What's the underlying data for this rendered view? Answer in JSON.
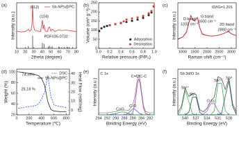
{
  "chart_data": [
    {
      "type": "line",
      "panel_label": "(a)",
      "x_label": "2theta (degree)",
      "y_label": "Intensity (a.u.)",
      "xlim": [
        10,
        80
      ],
      "xticks": [
        10,
        20,
        30,
        40,
        50,
        60,
        70,
        80
      ],
      "ylim": [
        0,
        100
      ],
      "legend": "upper right",
      "annotations": [
        "(012)",
        "(104)",
        "PDF#35-0732"
      ],
      "x": [
        10,
        15,
        20,
        23.7,
        25,
        27,
        28,
        28.7,
        29.5,
        31,
        35,
        38,
        40.1,
        41,
        42,
        43.5,
        46,
        47.1,
        48.4,
        50,
        51.6,
        55,
        59.4,
        62.9,
        65.9,
        68.6,
        71.5,
        75.4,
        80
      ],
      "series": [
        {
          "name": "Sb-NPs@PC",
          "color": "#e53935",
          "values": [
            38,
            36,
            37,
            42,
            38,
            40,
            55,
            95,
            50,
            40,
            38,
            37,
            62,
            42,
            52,
            38,
            37,
            44,
            47,
            38,
            42,
            37,
            41,
            39,
            40,
            40,
            39,
            38,
            37
          ]
        },
        {
          "type": "stick",
          "color": "#222222",
          "x": [
            23.7,
            28.7,
            40.1,
            42,
            47.1,
            48.4,
            51.6,
            59.4,
            62.9,
            65.9,
            68.6,
            71.5,
            75.4
          ],
          "values": [
            5,
            28,
            12,
            10,
            4,
            6,
            5,
            4,
            3,
            3,
            4,
            3,
            3
          ]
        }
      ]
    },
    {
      "type": "scatter",
      "panel_label": "(b)",
      "x_label": "Relative pressure (P/P₀)",
      "y_label": "Volume (cm³ g⁻¹)",
      "xlim": [
        0,
        1
      ],
      "xticks": [
        {
          "value": 0,
          "label": "0.0"
        },
        0.2,
        0.4,
        0.6,
        0.8,
        {
          "value": 1,
          "label": "1.0"
        }
      ],
      "ylim": [
        0,
        250
      ],
      "yticks": [
        0,
        50,
        100,
        150,
        200,
        250
      ],
      "legend": "lower right",
      "series": [
        {
          "name": "Adsorption",
          "color": "#222222",
          "marker": "square",
          "x": [
            0.01,
            0.05,
            0.1,
            0.15,
            0.2,
            0.3,
            0.4,
            0.5,
            0.6,
            0.7,
            0.8,
            0.9,
            0.95,
            0.99
          ],
          "values": [
            95,
            110,
            118,
            123,
            127,
            133,
            139,
            145,
            151,
            158,
            167,
            182,
            197,
            230
          ]
        },
        {
          "name": "Desorption",
          "color": "#e53935",
          "marker": "circle",
          "x": [
            0.99,
            0.95,
            0.9,
            0.8,
            0.7,
            0.6,
            0.5,
            0.45,
            0.4,
            0.3,
            0.2
          ],
          "values": [
            230,
            205,
            192,
            178,
            170,
            164,
            158,
            148,
            140,
            133,
            127
          ]
        }
      ]
    },
    {
      "type": "line",
      "panel_label": "(c)",
      "x_label": "Raman shift (cm⁻¹)",
      "y_label": "Intensity (a.u.)",
      "xlim": [
        800,
        3200
      ],
      "xticks": [
        1000,
        1500,
        2000,
        2500,
        3000
      ],
      "ylim": [
        0,
        100
      ],
      "annotations": [
        "ID/IG=1.201",
        "D band",
        "1332 cm⁻¹",
        "G band",
        "1600 cm⁻¹",
        "2D band",
        "2880 cm⁻¹"
      ],
      "x": [
        800,
        1000,
        1150,
        1250,
        1332,
        1420,
        1500,
        1600,
        1700,
        1800,
        2000,
        2200,
        2400,
        2600,
        2750,
        2880,
        3000,
        3200
      ],
      "series": [
        {
          "color": "#222222",
          "values": [
            20,
            25,
            35,
            55,
            72,
            62,
            60,
            68,
            45,
            32,
            28,
            27,
            28,
            31,
            34,
            38,
            32,
            28
          ]
        },
        {
          "color": "#e53935",
          "values": [
            21,
            25,
            36,
            56,
            71,
            63,
            61,
            67,
            46,
            31,
            28,
            27,
            28,
            31,
            34,
            37,
            32,
            28
          ]
        }
      ]
    },
    {
      "type": "line",
      "panel_label": "(d)",
      "x_label": "Temperature (℃)",
      "y_label": "Weight (%)",
      "y2_label": "Heat Flow (mW/mg)",
      "xlim": [
        0,
        850
      ],
      "xticks": [
        0,
        200,
        400,
        600,
        800
      ],
      "ylim": [
        20,
        105
      ],
      "yticks": [
        20,
        40,
        60,
        80,
        100
      ],
      "y2lim": [
        -5,
        45
      ],
      "y2ticks": [
        0,
        10,
        20,
        30,
        40
      ],
      "legend": "upper right",
      "annotations": [
        "74.39%",
        "25.18 %"
      ],
      "annotation_color": "#e53935",
      "x": [
        25,
        100,
        200,
        300,
        350,
        400,
        450,
        500,
        550,
        600,
        700,
        800
      ],
      "series": [
        {
          "name": "DSC",
          "color": "#1e4fd8",
          "axis": "y2",
          "dash": true,
          "values": [
            2,
            3,
            4,
            5,
            7,
            12,
            20,
            38,
            15,
            6,
            4,
            3
          ]
        },
        {
          "name": "Sb-NPs@PC",
          "color": "#222222",
          "values": [
            100,
            99,
            97,
            95,
            93,
            88,
            75,
            45,
            30,
            27,
            26,
            26
          ]
        }
      ]
    },
    {
      "type": "line",
      "panel_label": "(e)",
      "x_label": "Binding Energy (eV)",
      "y_label": "Intensity (a.u.)",
      "xlim": [
        294,
        281
      ],
      "xticks": [
        294,
        292,
        290,
        288,
        286,
        284,
        282
      ],
      "ylim": [
        0,
        115
      ],
      "peak_labels": true,
      "annotations": [
        "C 1s"
      ],
      "x": [
        294,
        292,
        290,
        289,
        288,
        287.5,
        287,
        286.5,
        286,
        285.5,
        285,
        284.8,
        284.6,
        284.3,
        284,
        283.5,
        283,
        282,
        281
      ],
      "series": [
        {
          "color": "#8c8c8c",
          "values": [
            5,
            5,
            8,
            12,
            12,
            12,
            11,
            17,
            26,
            48,
            86,
            97,
            100,
            87,
            61,
            22,
            8,
            5,
            5
          ]
        },
        {
          "name": "C=C/C-C",
          "color": "#b03aa8",
          "values": [
            0,
            0,
            0,
            0,
            0,
            0,
            0.3,
            0.6,
            6,
            29,
            72,
            85,
            90,
            79,
            55,
            17,
            3,
            0,
            0
          ]
        },
        {
          "name": "C-O",
          "color": "#3a6ee8",
          "values": [
            0,
            0,
            0,
            0,
            0,
            1.6,
            5,
            10,
            15,
            14,
            9,
            7,
            5,
            3,
            1,
            0,
            0,
            0,
            0
          ]
        },
        {
          "name": "C=O",
          "color": "#2ca02c",
          "values": [
            0,
            0,
            3,
            7,
            7,
            5,
            3,
            1,
            0,
            0,
            0,
            0,
            0,
            0,
            0,
            0,
            0,
            0,
            0
          ]
        }
      ]
    },
    {
      "type": "line",
      "panel_label": "(f)",
      "x_label": "Binding Energy (eV)",
      "y_label": "Intensity (a.u.)",
      "xlim": [
        542,
        526
      ],
      "xticks": [
        540,
        537,
        534,
        531,
        528
      ],
      "ylim": [
        0,
        90
      ],
      "peak_labels": true,
      "annotations": [
        "Sb 3d/O 1s"
      ],
      "x": [
        542,
        541,
        540,
        539,
        538,
        537,
        536,
        535,
        534,
        533,
        532,
        531,
        530,
        529,
        528,
        527,
        526
      ],
      "series": [
        {
          "color": "#555555",
          "values": [
            5,
            17,
            53,
            36,
            42,
            40,
            10,
            6,
            13,
            27,
            35,
            75,
            71,
            50,
            72,
            22,
            6
          ]
        },
        {
          "name": "Sb³⁺",
          "color": "#3cb44b",
          "values": [
            0,
            12,
            48,
            26,
            2,
            0,
            0,
            0,
            0,
            0,
            0,
            0,
            0,
            0,
            0,
            0,
            0
          ]
        },
        {
          "name": "Sb⁰",
          "color": "#1f5f5b",
          "values": [
            0,
            0,
            0,
            5,
            35,
            35,
            5,
            0,
            0,
            0,
            0,
            0,
            0,
            0,
            0,
            0,
            0
          ]
        },
        {
          "name": "O 1s",
          "color": "#9b59b6",
          "values": [
            0,
            0,
            0,
            0,
            0,
            0,
            0,
            1,
            8,
            22,
            22,
            8,
            1,
            0,
            0,
            0,
            0
          ]
        },
        {
          "name": "Sb³⁺",
          "color": "#3cb44b",
          "values": [
            0,
            0,
            0,
            0,
            0,
            0,
            0,
            0,
            0,
            0,
            8,
            62,
            62,
            8,
            0,
            0,
            0
          ]
        },
        {
          "name": "Sb⁰",
          "color": "#1f5f5b",
          "values": [
            0,
            0,
            0,
            0,
            0,
            0,
            0,
            0,
            0,
            0,
            0,
            0,
            3,
            37,
            67,
            17,
            1
          ]
        }
      ]
    }
  ]
}
